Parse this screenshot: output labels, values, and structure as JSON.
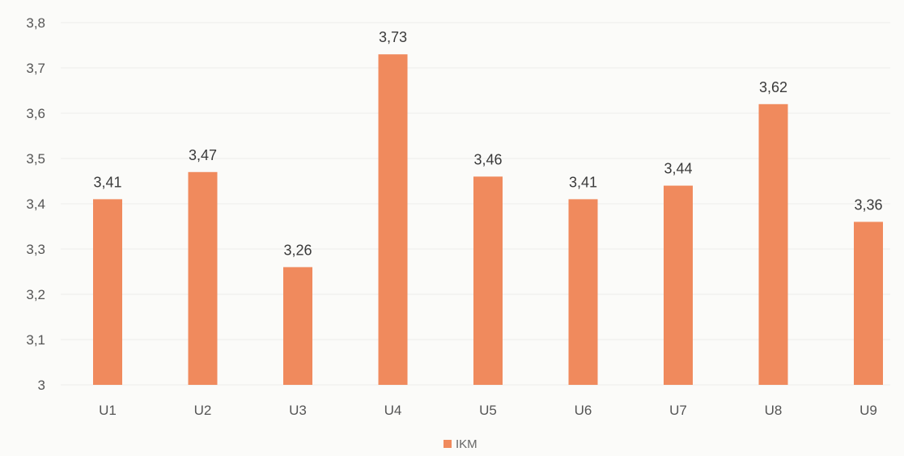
{
  "chart_data": {
    "type": "bar",
    "categories": [
      "U1",
      "U2",
      "U3",
      "U4",
      "U5",
      "U6",
      "U7",
      "U8",
      "U9"
    ],
    "series": [
      {
        "name": "IKM",
        "values": [
          3.41,
          3.47,
          3.26,
          3.73,
          3.46,
          3.41,
          3.44,
          3.62,
          3.36
        ],
        "value_labels": [
          "3,41",
          "3,47",
          "3,26",
          "3,73",
          "3,46",
          "3,41",
          "3,44",
          "3,62",
          "3,36"
        ]
      }
    ],
    "ylim": [
      3,
      3.8
    ],
    "yticks": [
      3,
      3.1,
      3.2,
      3.3,
      3.4,
      3.5,
      3.6,
      3.7,
      3.8
    ],
    "ytick_labels": [
      "3",
      "3,1",
      "3,2",
      "3,3",
      "3,4",
      "3,5",
      "3,6",
      "3,7",
      "3,8"
    ],
    "grid": true,
    "legend_position": "bottom",
    "colors": {
      "bar": "#f08a5d",
      "grid": "#ececec",
      "background": "#fbfbf9"
    }
  }
}
